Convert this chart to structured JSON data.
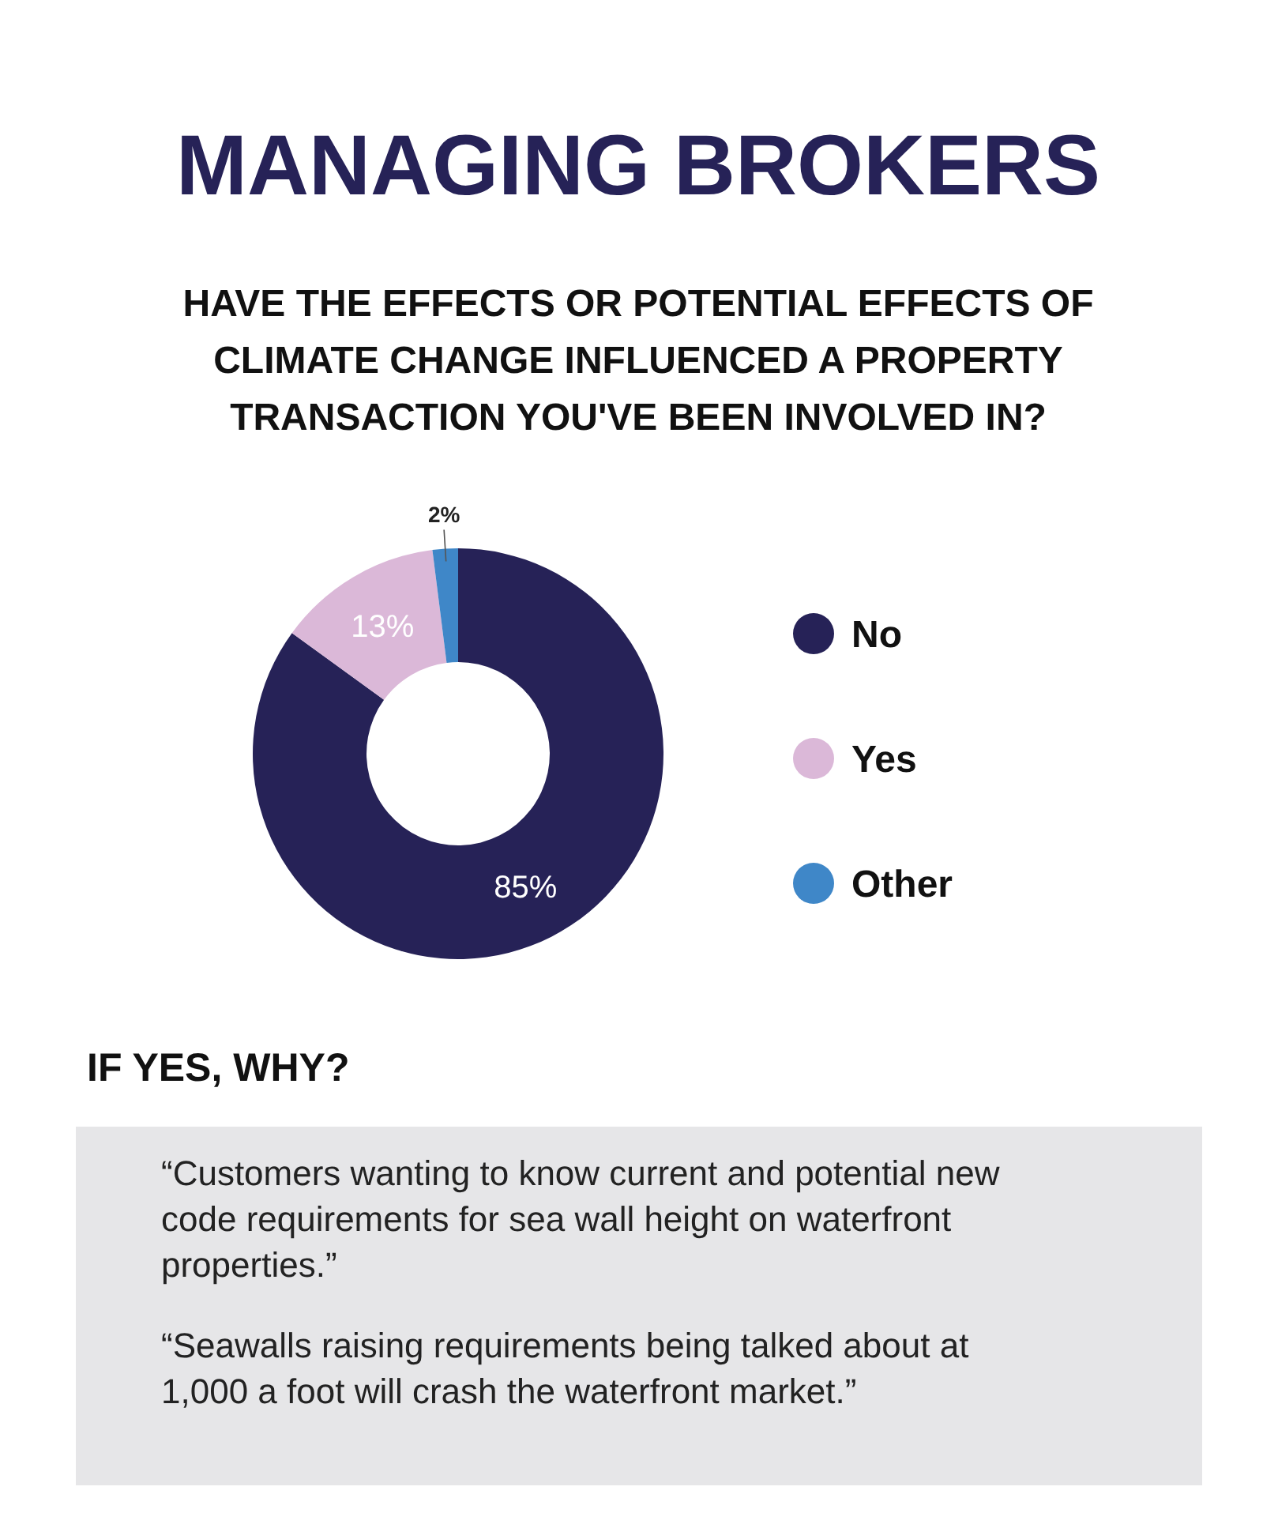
{
  "chart_data": {
    "type": "donut",
    "title": "MANAGING BROKERS",
    "subtitle": "HAVE THE EFFECTS OR POTENTIAL EFFECTS OF CLIMATE CHANGE INFLUENCED A PROPERTY TRANSACTION YOU'VE BEEN INVOLVED IN?",
    "categories": [
      "No",
      "Yes",
      "Other"
    ],
    "values": [
      85,
      13,
      2
    ],
    "colors": [
      "#262257",
      "#dbb8d8",
      "#3f87c8"
    ],
    "value_labels": [
      "85%",
      "13%",
      "2%"
    ],
    "legend": "right",
    "annotations": [
      "IF YES, WHY?",
      "“Customers wanting to know current and potential new code requirements for sea wall height on waterfront properties.”",
      "“Seawalls raising requirements being talked about at 1,000 a foot will crash the waterfront market.”"
    ]
  }
}
